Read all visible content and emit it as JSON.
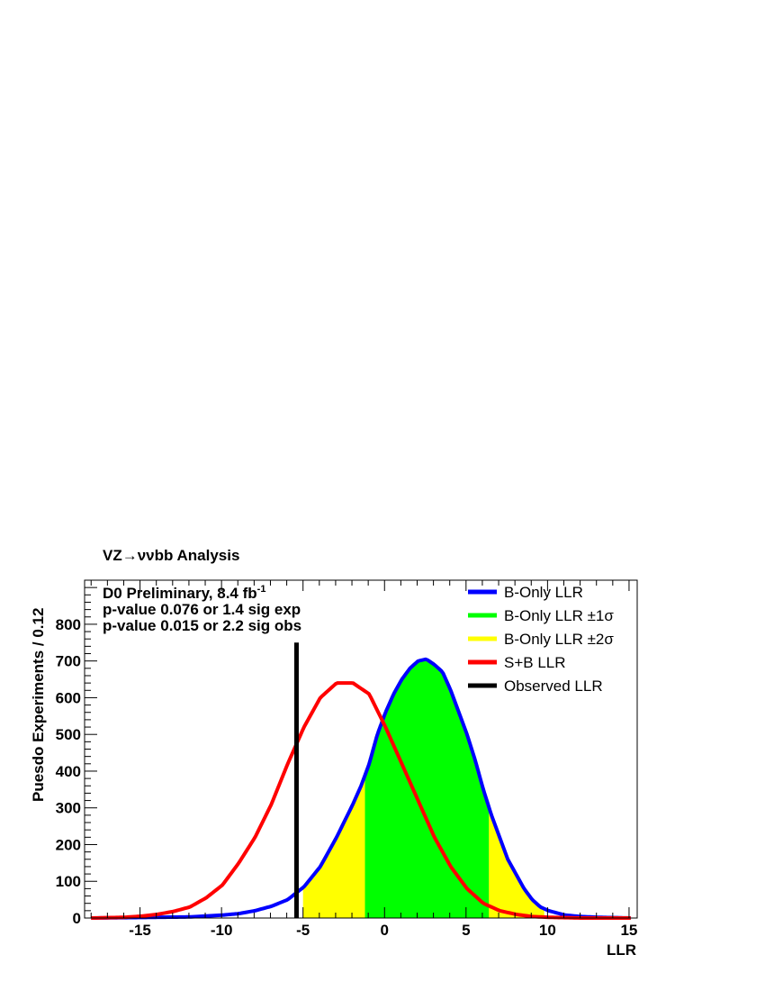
{
  "chart_data": {
    "type": "histogram",
    "title": "VZ→ννbb Analysis",
    "xlabel": "LLR",
    "ylabel": "Puesdo Experiments / 0.12",
    "xlim": [
      -18.4,
      15.5
    ],
    "ylim": [
      0,
      920
    ],
    "x_ticks": [
      -15,
      -10,
      -5,
      0,
      5,
      10,
      15
    ],
    "y_ticks": [
      0,
      100,
      200,
      300,
      400,
      500,
      600,
      700,
      800
    ],
    "annotations": [
      "D0 Preliminary, 8.4 fb",
      "p-value 0.076 or 1.4 sig exp",
      "p-value 0.015 or 2.2 sig obs"
    ],
    "annotation_superscript": "-1",
    "legend": [
      {
        "label": "B-Only LLR",
        "color": "#0000ff"
      },
      {
        "label": "B-Only LLR ±1σ",
        "color": "#00ff00"
      },
      {
        "label": "B-Only LLR ±2σ",
        "color": "#ffff00"
      },
      {
        "label": "S+B LLR",
        "color": "#ff0000"
      },
      {
        "label": "Observed LLR",
        "color": "#000000"
      }
    ],
    "legend_position": "top-right",
    "series": [
      {
        "name": "B-Only LLR",
        "color": "#0000ff",
        "x": [
          -18,
          -16,
          -14,
          -12,
          -10,
          -9,
          -8,
          -7,
          -6,
          -5,
          -4,
          -3,
          -2,
          -1.5,
          -1,
          -0.5,
          0,
          0.5,
          1,
          1.5,
          2,
          2.5,
          3,
          3.5,
          4,
          4.5,
          5,
          5.5,
          6,
          6.5,
          7,
          7.5,
          8,
          8.5,
          9,
          9.5,
          10,
          11,
          12,
          13,
          14,
          15
        ],
        "values": [
          0,
          1,
          2,
          3,
          8,
          12,
          20,
          32,
          50,
          85,
          140,
          220,
          310,
          360,
          420,
          500,
          560,
          610,
          650,
          680,
          700,
          705,
          690,
          670,
          620,
          560,
          500,
          430,
          350,
          280,
          220,
          160,
          120,
          80,
          50,
          30,
          20,
          8,
          4,
          2,
          1,
          0
        ]
      },
      {
        "name": "S+B LLR",
        "color": "#ff0000",
        "x": [
          -18,
          -16,
          -15,
          -14,
          -13,
          -12,
          -11,
          -10,
          -9,
          -8,
          -7,
          -6,
          -5,
          -4,
          -3,
          -2,
          -1,
          0,
          1,
          2,
          3,
          4,
          5,
          6,
          7,
          8,
          9,
          10,
          12,
          15
        ],
        "values": [
          0,
          2,
          5,
          10,
          18,
          30,
          55,
          90,
          150,
          220,
          310,
          420,
          520,
          600,
          640,
          640,
          610,
          520,
          420,
          320,
          220,
          140,
          80,
          40,
          20,
          10,
          4,
          2,
          0,
          0
        ]
      }
    ],
    "bands": [
      {
        "name": "B-Only LLR ±2σ",
        "color": "#ffff00",
        "x_range": [
          -5.0,
          9.8
        ]
      },
      {
        "name": "B-Only LLR ±1σ",
        "color": "#00ff00",
        "x_range": [
          -1.2,
          6.4
        ]
      }
    ],
    "observed_llr": {
      "name": "Observed LLR",
      "x": -5.4,
      "color": "#000000"
    },
    "grid": false
  }
}
